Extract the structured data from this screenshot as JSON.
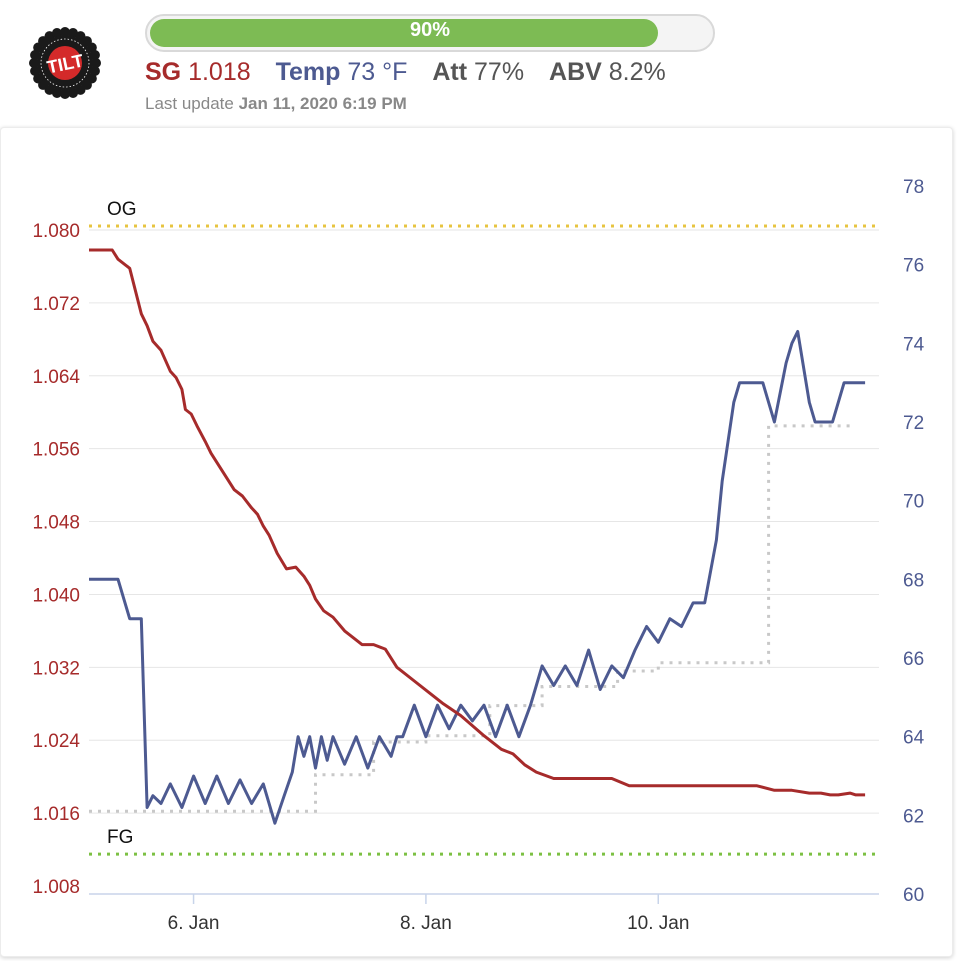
{
  "header": {
    "progress_label": "90%",
    "progress_value": 0.9,
    "stats": [
      {
        "key": "SG",
        "value": "1.018",
        "color": "#a62b2b"
      },
      {
        "key": "Temp",
        "value": "73 °F",
        "color": "#4d5a91"
      },
      {
        "key": "Att",
        "value": "77%",
        "color": "#555555"
      },
      {
        "key": "ABV",
        "value": "8.2%",
        "color": "#555555"
      }
    ],
    "last_update_label": "Last update",
    "last_update_value": "Jan 11, 2020 6:19 PM"
  },
  "logo": {
    "text": "TILT",
    "colors": {
      "ring": "#1a1a1a",
      "center": "#d42a2a"
    }
  },
  "colors": {
    "sg": "#a62b2b",
    "temp": "#4d5a91",
    "og_line": "#e7c440",
    "fg_line": "#7cc043",
    "steps": "#c8c8c8",
    "grid": "#e6e6e6",
    "axis": "#c8d4ea"
  },
  "chart_data": {
    "type": "line",
    "xlabel": "",
    "x_ticks": [
      "6. Jan",
      "8. Jan",
      "10. Jan"
    ],
    "x_tick_days": [
      6,
      8,
      10
    ],
    "xlim": [
      5.1,
      11.9
    ],
    "y_left": {
      "label": "",
      "ylim": [
        1.008,
        1.08
      ],
      "ticks": [
        "1.080",
        "1.072",
        "1.064",
        "1.056",
        "1.048",
        "1.040",
        "1.032",
        "1.024",
        "1.016",
        "1.008"
      ]
    },
    "y_right": {
      "label": "",
      "ylim": [
        60,
        78
      ],
      "ticks": [
        "78",
        "76",
        "74",
        "72",
        "70",
        "68",
        "66",
        "64",
        "62",
        "60"
      ]
    },
    "reference_lines": [
      {
        "name": "OG",
        "value": 1.08,
        "axis": "left"
      },
      {
        "name": "FG",
        "value": 1.0115,
        "axis": "left"
      }
    ],
    "series": [
      {
        "name": "SG",
        "axis": "left",
        "x": [
          5.1,
          5.3,
          5.35,
          5.45,
          5.55,
          5.6,
          5.65,
          5.72,
          5.8,
          5.85,
          5.9,
          5.93,
          5.98,
          6.03,
          6.1,
          6.15,
          6.2,
          6.25,
          6.3,
          6.35,
          6.42,
          6.5,
          6.55,
          6.6,
          6.65,
          6.72,
          6.8,
          6.88,
          6.95,
          7.0,
          7.05,
          7.12,
          7.2,
          7.3,
          7.45,
          7.55,
          7.65,
          7.75,
          7.9,
          8.05,
          8.15,
          8.3,
          8.5,
          8.65,
          8.75,
          8.85,
          8.95,
          9.1,
          9.2,
          9.3,
          9.45,
          9.6,
          9.75,
          9.9,
          10.0,
          10.1,
          10.2,
          10.35,
          10.5,
          10.65,
          10.75,
          10.85,
          11.0,
          11.15,
          11.3,
          11.4,
          11.48,
          11.55,
          11.65,
          11.7,
          11.78
        ],
        "y": [
          1.0778,
          1.0778,
          1.0768,
          1.0758,
          1.0708,
          1.0695,
          1.0678,
          1.0668,
          1.0645,
          1.0638,
          1.0625,
          1.0603,
          1.0598,
          1.0585,
          1.0568,
          1.0555,
          1.0545,
          1.0535,
          1.0525,
          1.0515,
          1.0508,
          1.0495,
          1.0488,
          1.0475,
          1.0465,
          1.0445,
          1.0428,
          1.043,
          1.042,
          1.041,
          1.0395,
          1.0382,
          1.0375,
          1.036,
          1.0345,
          1.0345,
          1.034,
          1.032,
          1.0305,
          1.029,
          1.028,
          1.0267,
          1.0245,
          1.023,
          1.0225,
          1.0213,
          1.0205,
          1.0198,
          1.0198,
          1.0198,
          1.0198,
          1.0198,
          1.019,
          1.019,
          1.019,
          1.019,
          1.019,
          1.019,
          1.019,
          1.019,
          1.019,
          1.019,
          1.0185,
          1.0185,
          1.0182,
          1.0182,
          1.018,
          1.018,
          1.0182,
          1.018,
          1.018
        ]
      },
      {
        "name": "Temp",
        "axis": "right",
        "x": [
          5.1,
          5.35,
          5.45,
          5.55,
          5.6,
          5.65,
          5.72,
          5.8,
          5.9,
          6.0,
          6.1,
          6.2,
          6.3,
          6.4,
          6.5,
          6.6,
          6.7,
          6.78,
          6.85,
          6.9,
          6.95,
          7.0,
          7.05,
          7.1,
          7.15,
          7.2,
          7.3,
          7.4,
          7.5,
          7.6,
          7.7,
          7.75,
          7.8,
          7.9,
          8.0,
          8.1,
          8.2,
          8.3,
          8.4,
          8.5,
          8.6,
          8.7,
          8.8,
          8.9,
          9.0,
          9.1,
          9.2,
          9.3,
          9.4,
          9.5,
          9.6,
          9.7,
          9.8,
          9.9,
          10.0,
          10.1,
          10.2,
          10.3,
          10.4,
          10.5,
          10.55,
          10.6,
          10.65,
          10.7,
          10.8,
          10.9,
          11.0,
          11.1,
          11.15,
          11.2,
          11.3,
          11.35,
          11.4,
          11.5,
          11.6,
          11.7,
          11.78
        ],
        "y": [
          68.0,
          68.0,
          67.0,
          67.0,
          62.2,
          62.5,
          62.3,
          62.8,
          62.2,
          63.0,
          62.3,
          63.0,
          62.3,
          62.9,
          62.3,
          62.8,
          61.8,
          62.5,
          63.1,
          64.0,
          63.5,
          64.0,
          63.2,
          64.0,
          63.4,
          64.0,
          63.3,
          64.0,
          63.2,
          64.0,
          63.5,
          64.0,
          64.0,
          64.8,
          64.0,
          64.8,
          64.2,
          64.8,
          64.4,
          64.8,
          64.0,
          64.8,
          64.0,
          64.8,
          65.8,
          65.3,
          65.8,
          65.3,
          66.2,
          65.2,
          65.8,
          65.5,
          66.2,
          66.8,
          66.4,
          67.0,
          66.8,
          67.4,
          67.4,
          69.0,
          70.5,
          71.5,
          72.5,
          73.0,
          73.0,
          73.0,
          72.0,
          73.5,
          74.0,
          74.3,
          72.5,
          72.0,
          72.0,
          72.0,
          73.0,
          73.0,
          73.0
        ]
      },
      {
        "name": "",
        "axis": "left",
        "x": [
          5.1,
          7.05,
          7.05,
          7.55,
          7.55,
          8.0,
          8.0,
          8.55,
          8.55,
          9.0,
          9.0,
          9.65,
          9.65,
          10.0,
          10.0,
          10.95,
          10.95,
          11.65
        ],
        "y": [
          1.0162,
          1.0162,
          1.0202,
          1.0202,
          1.0238,
          1.0238,
          1.0245,
          1.0245,
          1.0278,
          1.0278,
          1.0299,
          1.0299,
          1.0316,
          1.0316,
          1.0325,
          1.0325,
          1.0585,
          1.0585
        ]
      }
    ]
  }
}
